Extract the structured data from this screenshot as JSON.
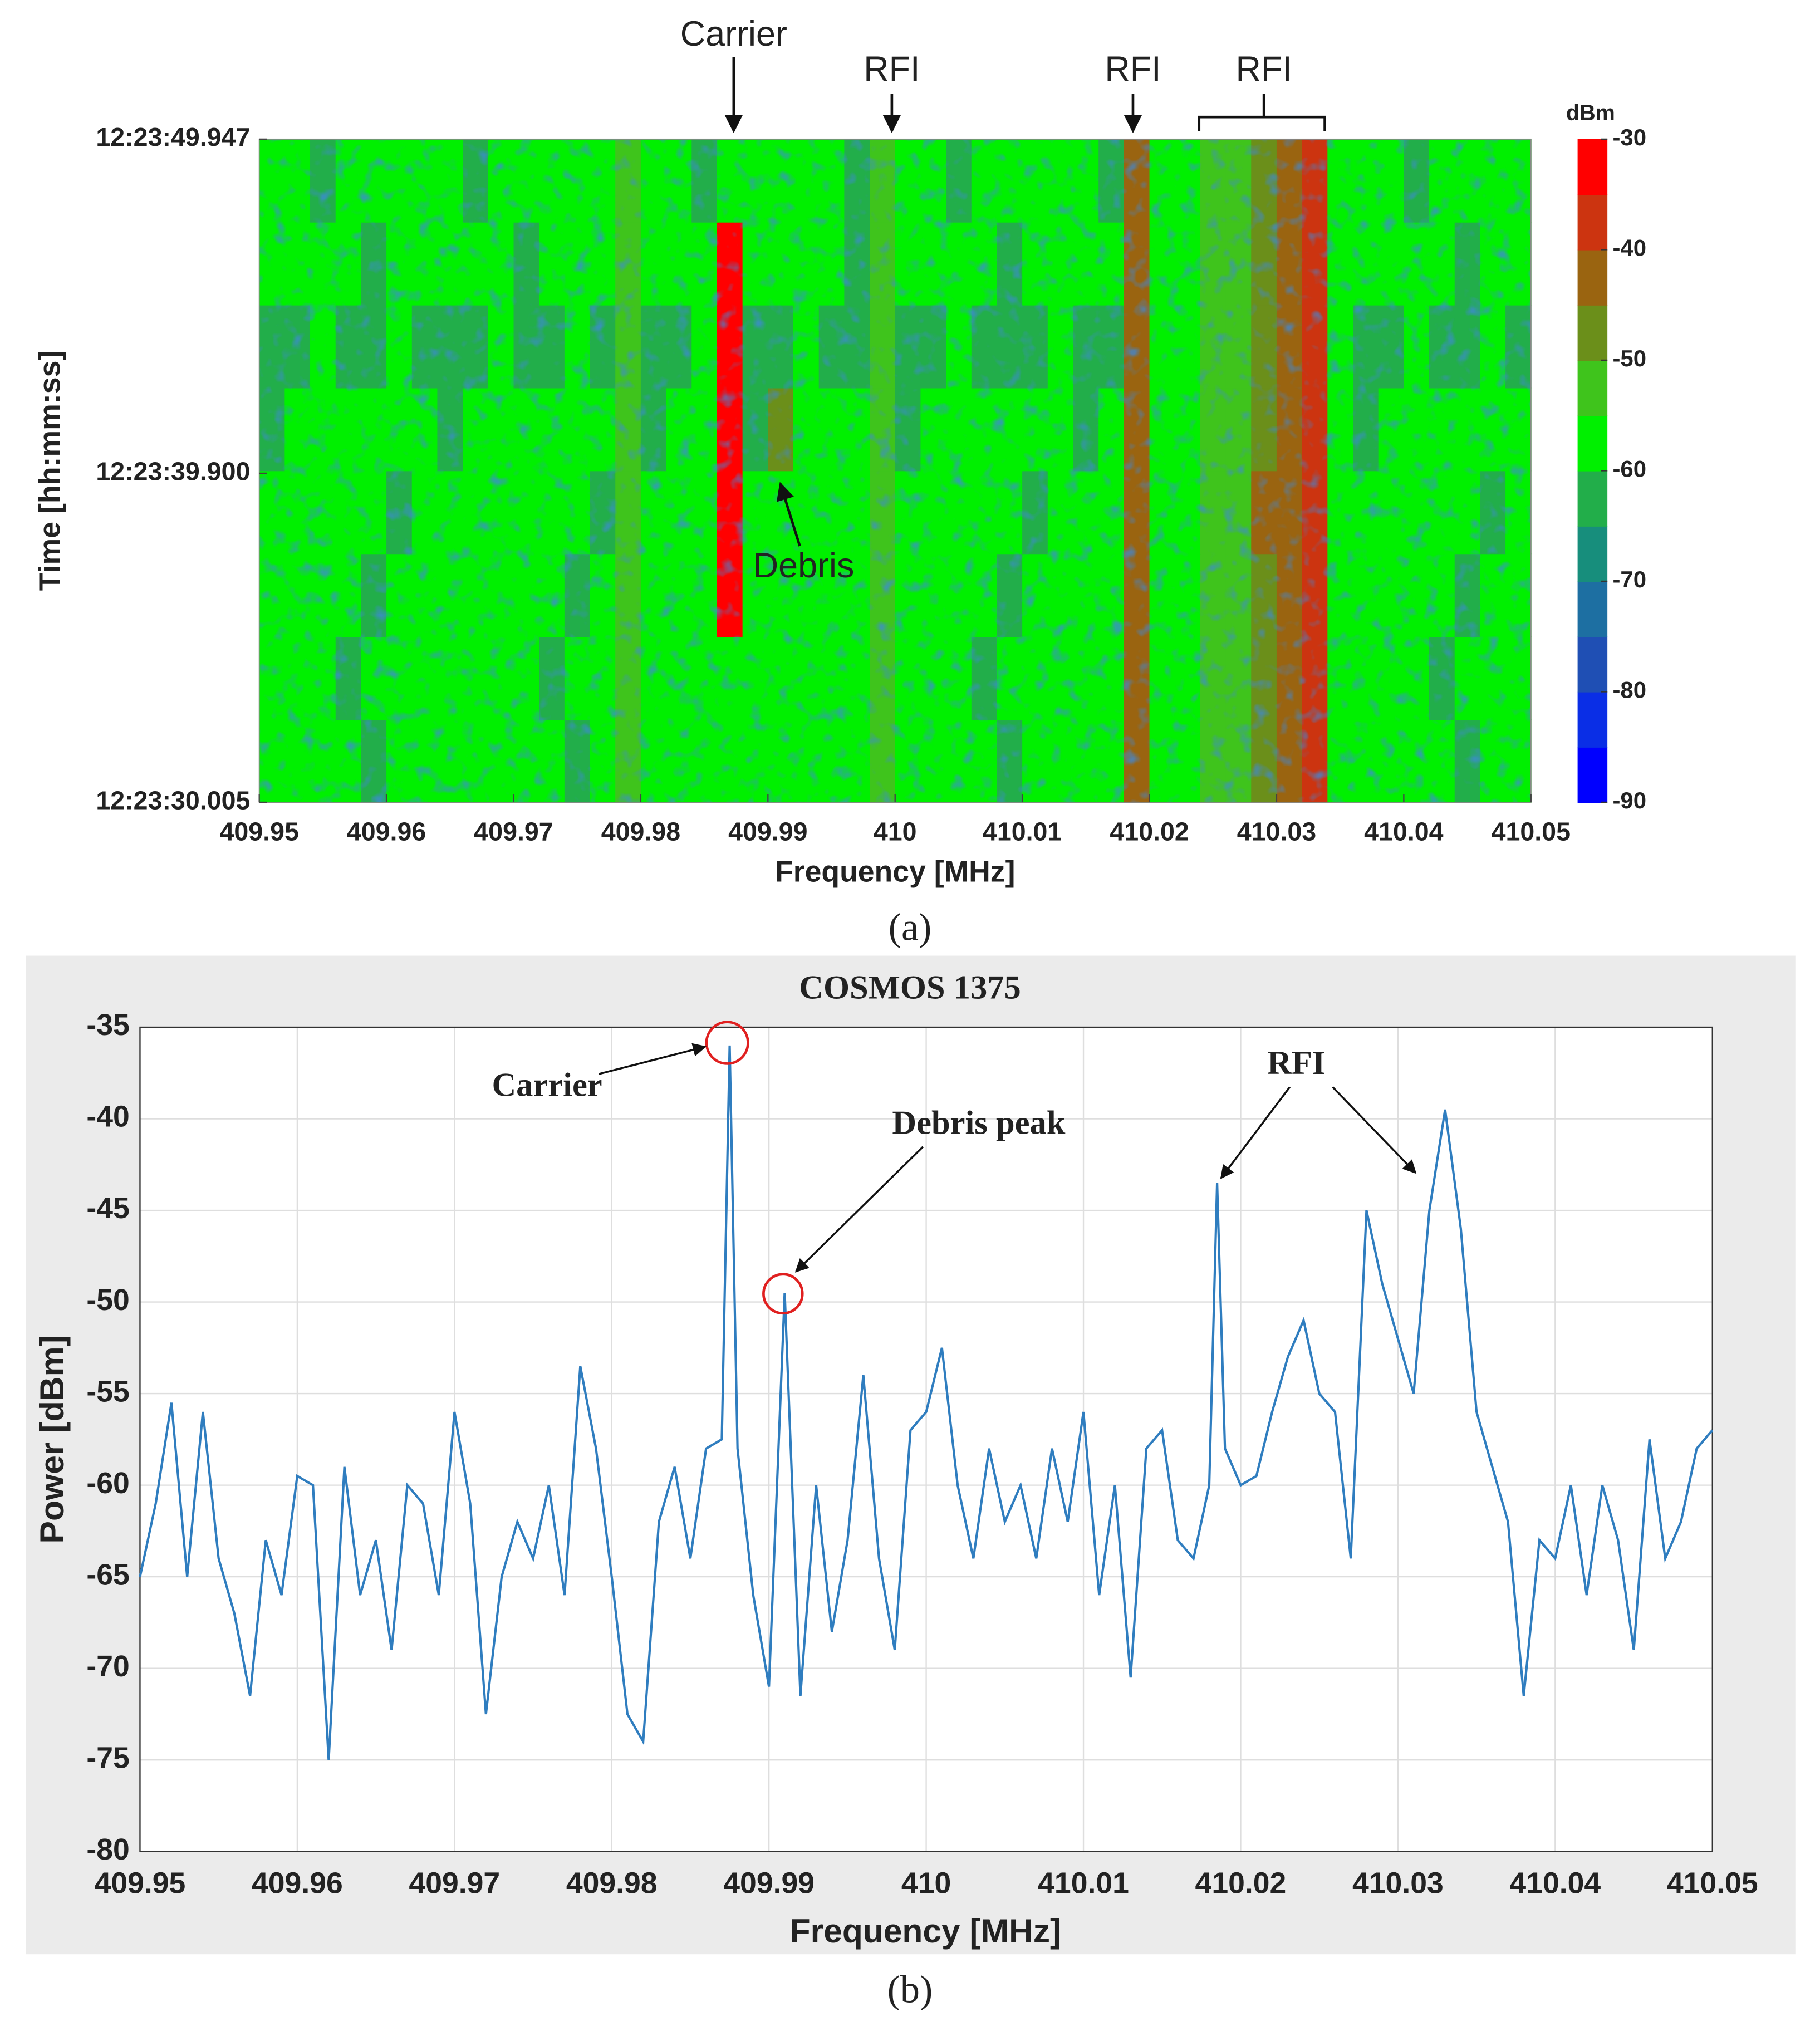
{
  "chart_data": [
    {
      "type": "heatmap",
      "annotations": [
        "Carrier",
        "RFI",
        "RFI",
        "RFI",
        "Debris"
      ],
      "xlabel": "Frequency [MHz]",
      "ylabel": "Time [hh:mm:ss]",
      "colorbar_label": "dBm",
      "caption": "(a)",
      "x": [
        409.951,
        409.953,
        409.955,
        409.957,
        409.959,
        409.961,
        409.963,
        409.965,
        409.967,
        409.969,
        409.971,
        409.973,
        409.975,
        409.977,
        409.979,
        409.981,
        409.983,
        409.985,
        409.987,
        409.989,
        409.991,
        409.993,
        409.995,
        409.997,
        409.999,
        410.001,
        410.003,
        410.005,
        410.007,
        410.009,
        410.011,
        410.013,
        410.015,
        410.017,
        410.019,
        410.021,
        410.023,
        410.025,
        410.027,
        410.029,
        410.031,
        410.033,
        410.035,
        410.037,
        410.039,
        410.041,
        410.043,
        410.045,
        410.047,
        410.049
      ],
      "y": [
        31.251,
        33.744,
        36.237,
        38.73,
        41.223,
        43.715,
        46.208,
        48.701
      ],
      "z": [
        [
          -59,
          -60,
          -58,
          -59,
          -61,
          -59,
          -58,
          -60,
          -59,
          -58,
          -60,
          -59,
          -61,
          -59,
          -54,
          -59,
          -60,
          -58,
          -58,
          -59,
          -59,
          -60,
          -58,
          -59,
          -52,
          -59,
          -60,
          -58,
          -59,
          -61,
          -59,
          -58,
          -60,
          -59,
          -43,
          -58,
          -58,
          -54,
          -53,
          -46,
          -44,
          -40,
          -57,
          -59,
          -60,
          -58,
          -59,
          -61,
          -59,
          -58
        ],
        [
          -60,
          -59,
          -59,
          -61,
          -59,
          -58,
          -60,
          -59,
          -58,
          -60,
          -59,
          -61,
          -59,
          -58,
          -54,
          -60,
          -59,
          -59,
          -58,
          -60,
          -59,
          -58,
          -60,
          -59,
          -52,
          -60,
          -59,
          -59,
          -61,
          -59,
          -58,
          -60,
          -59,
          -58,
          -43,
          -59,
          -58,
          -54,
          -52,
          -46,
          -44,
          -40,
          -57,
          -60,
          -59,
          -59,
          -61,
          -59,
          -58,
          -60
        ],
        [
          -59,
          -60,
          -58,
          -59,
          -61,
          -59,
          -58,
          -60,
          -59,
          -58,
          -60,
          -59,
          -61,
          -59,
          -54,
          -59,
          -60,
          -58,
          -33,
          -59,
          -59,
          -60,
          -58,
          -59,
          -52,
          -59,
          -60,
          -58,
          -59,
          -61,
          -59,
          -58,
          -60,
          -59,
          -43,
          -58,
          -58,
          -54,
          -53,
          -46,
          -44,
          -40,
          -57,
          -59,
          -60,
          -58,
          -59,
          -61,
          -59,
          -58
        ],
        [
          -58,
          -59,
          -60,
          -58,
          -59,
          -61,
          -59,
          -58,
          -60,
          -59,
          -58,
          -60,
          -59,
          -61,
          -54,
          -58,
          -59,
          -60,
          -33,
          -58,
          -60,
          -59,
          -59,
          -58,
          -52,
          -58,
          -59,
          -60,
          -58,
          -59,
          -61,
          -59,
          -58,
          -60,
          -43,
          -59,
          -58,
          -53,
          -53,
          -45,
          -44,
          -40,
          -58,
          -58,
          -59,
          -60,
          -58,
          -59,
          -61,
          -59
        ],
        [
          -61,
          -59,
          -58,
          -60,
          -59,
          -58,
          -60,
          -61,
          -59,
          -58,
          -59,
          -60,
          -58,
          -59,
          -54,
          -61,
          -59,
          -58,
          -33,
          -61,
          -48,
          -59,
          -58,
          -60,
          -52,
          -61,
          -59,
          -58,
          -60,
          -59,
          -58,
          -60,
          -61,
          -59,
          -43,
          -58,
          -57,
          -54,
          -53,
          -46,
          -43,
          -40,
          -57,
          -61,
          -59,
          -58,
          -60,
          -59,
          -58,
          -60
        ],
        [
          -62,
          -61,
          -60,
          -61,
          -62,
          -60,
          -61,
          -62,
          -61,
          -60,
          -61,
          -62,
          -60,
          -61,
          -55,
          -62,
          -61,
          -60,
          -33,
          -61,
          -62,
          -60,
          -61,
          -62,
          -53,
          -61,
          -62,
          -60,
          -61,
          -62,
          -61,
          -60,
          -61,
          -62,
          -43,
          -59,
          -58,
          -54,
          -53,
          -46,
          -44,
          -40,
          -58,
          -61,
          -62,
          -60,
          -61,
          -62,
          -60,
          -61
        ],
        [
          -59,
          -58,
          -60,
          -59,
          -61,
          -58,
          -59,
          -60,
          -58,
          -59,
          -61,
          -59,
          -58,
          -60,
          -54,
          -59,
          -58,
          -60,
          -33,
          -59,
          -58,
          -60,
          -59,
          -61,
          -52,
          -59,
          -58,
          -60,
          -59,
          -61,
          -58,
          -59,
          -60,
          -58,
          -43,
          -58,
          -58,
          -54,
          -53,
          -46,
          -44,
          -40,
          -57,
          -59,
          -58,
          -60,
          -59,
          -61,
          -58,
          -59
        ],
        [
          -60,
          -59,
          -61,
          -58,
          -59,
          -60,
          -59,
          -58,
          -61,
          -59,
          -60,
          -58,
          -59,
          -60,
          -54,
          -60,
          -59,
          -61,
          -58,
          -59,
          -60,
          -59,
          -58,
          -61,
          -52,
          -60,
          -59,
          -61,
          -58,
          -59,
          -60,
          -59,
          -58,
          -61,
          -43,
          -58,
          -58,
          -54,
          -53,
          -46,
          -44,
          -40,
          -57,
          -60,
          -59,
          -61,
          -58,
          -59,
          -60,
          -59
        ]
      ],
      "xlim": [
        409.95,
        410.05
      ],
      "xticks": [
        409.95,
        409.96,
        409.97,
        409.98,
        409.99,
        410,
        410.01,
        410.02,
        410.03,
        410.04,
        410.05
      ],
      "ylim": [
        30.005,
        49.947
      ],
      "yticks": [
        {
          "value": 49.947,
          "label": "12:23:49.947"
        },
        {
          "value": 39.9,
          "label": "12:23:39.900"
        },
        {
          "value": 30.005,
          "label": "12:23:30.005"
        }
      ],
      "clim": [
        -90,
        -30
      ],
      "cticks": [
        -30,
        -40,
        -50,
        -60,
        -70,
        -80,
        -90
      ],
      "colormap": [
        "#0000ff",
        "#0a2ee6",
        "#1f4fb4",
        "#1d6fa2",
        "#178e7c",
        "#22ae4a",
        "#00f000",
        "#3fc41c",
        "#6b8f1a",
        "#9a6410",
        "#cc3410",
        "#ff0000"
      ]
    },
    {
      "type": "line",
      "title": "COSMOS 1375",
      "xlabel": "Frequency [MHz]",
      "ylabel": "Power [dBm]",
      "caption": "(b)",
      "annotations": [
        "Carrier",
        "Debris peak",
        "RFI"
      ],
      "color": "#2f7dbf",
      "grid": true,
      "x": [
        409.95,
        409.951,
        409.952,
        409.953,
        409.954,
        409.955,
        409.956,
        409.957,
        409.958,
        409.959,
        409.96,
        409.961,
        409.962,
        409.963,
        409.964,
        409.965,
        409.966,
        409.967,
        409.968,
        409.969,
        409.97,
        409.971,
        409.972,
        409.973,
        409.974,
        409.975,
        409.976,
        409.977,
        409.978,
        409.979,
        409.98,
        409.981,
        409.982,
        409.983,
        409.984,
        409.985,
        409.986,
        409.987,
        409.9875,
        409.988,
        409.989,
        409.99,
        409.991,
        409.992,
        409.993,
        409.994,
        409.995,
        409.996,
        409.997,
        409.998,
        409.999,
        410,
        410.001,
        410.002,
        410.003,
        410.004,
        410.005,
        410.006,
        410.007,
        410.008,
        410.009,
        410.01,
        410.011,
        410.012,
        410.013,
        410.014,
        410.015,
        410.016,
        410.017,
        410.018,
        410.0185,
        410.019,
        410.02,
        410.021,
        410.022,
        410.023,
        410.024,
        410.025,
        410.026,
        410.027,
        410.028,
        410.029,
        410.03,
        410.031,
        410.032,
        410.033,
        410.034,
        410.035,
        410.036,
        410.037,
        410.038,
        410.039,
        410.04,
        410.041,
        410.042,
        410.043,
        410.044,
        410.045,
        410.046,
        410.047,
        410.048,
        410.049,
        410.05
      ],
      "values": [
        -65,
        -61,
        -55.5,
        -65,
        -56,
        -64,
        -67,
        -71.5,
        -63,
        -66,
        -59.5,
        -60,
        -75,
        -59,
        -66,
        -63,
        -69,
        -60,
        -61,
        -66,
        -56,
        -61,
        -72.5,
        -65,
        -62,
        -64,
        -60,
        -66,
        -53.5,
        -58,
        -65,
        -72.5,
        -74,
        -62,
        -59,
        -64,
        -58,
        -57.5,
        -36,
        -58,
        -66,
        -71,
        -49.5,
        -71.5,
        -60,
        -68,
        -63,
        -54,
        -64,
        -69,
        -57,
        -56,
        -52.5,
        -60,
        -64,
        -58,
        -62,
        -60,
        -64,
        -58,
        -62,
        -56,
        -66,
        -60,
        -70.5,
        -58,
        -57,
        -63,
        -64,
        -60,
        -43.5,
        -58,
        -60,
        -59.5,
        -56,
        -53,
        -51,
        -55,
        -56,
        -64,
        -45,
        -49,
        -52,
        -55,
        -45,
        -39.5,
        -46,
        -56,
        -59,
        -62,
        -71.5,
        -63,
        -64,
        -60,
        -66,
        -60,
        -63,
        -69,
        -57.5,
        -64,
        -62,
        -58,
        -57
      ],
      "xlim": [
        409.95,
        410.05
      ],
      "xticks": [
        409.95,
        409.96,
        409.97,
        409.98,
        409.99,
        410,
        410.01,
        410.02,
        410.03,
        410.04,
        410.05
      ],
      "ylim": [
        -80,
        -35
      ],
      "yticks": [
        -80,
        -75,
        -70,
        -65,
        -60,
        -55,
        -50,
        -45,
        -40,
        -35
      ]
    }
  ]
}
